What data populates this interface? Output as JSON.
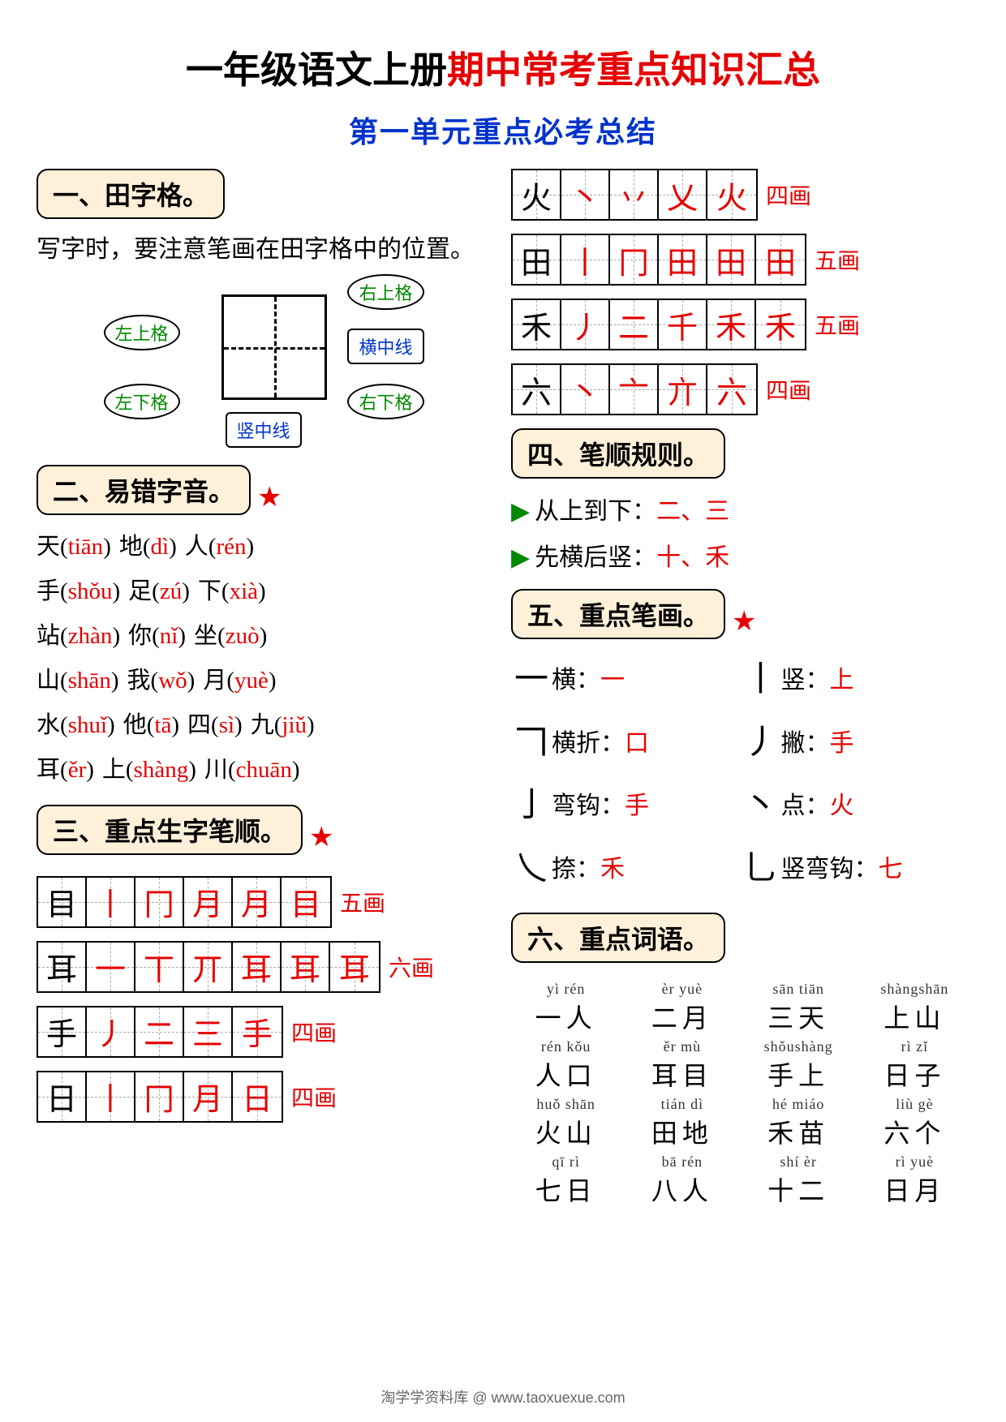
{
  "title": {
    "part1": "一年级语文上册",
    "part2": "期中常考重点知识汇总"
  },
  "subtitle": "第一单元重点必考总结",
  "sections": {
    "s1": {
      "header": "一、田字格。",
      "text": "写字时，要注意笔画在田字格中的位置。",
      "labels": {
        "tl": "左上格",
        "tr": "右上格",
        "bl": "左下格",
        "br": "右下格",
        "hline": "横中线",
        "vline": "竖中线"
      }
    },
    "s2": {
      "header": "二、易错字音。",
      "items": [
        {
          "c": "天",
          "p": "tiān"
        },
        {
          "c": "地",
          "p": "dì"
        },
        {
          "c": "人",
          "p": "rén"
        },
        {
          "c": "手",
          "p": "shǒu"
        },
        {
          "c": "足",
          "p": "zú"
        },
        {
          "c": "下",
          "p": "xià"
        },
        {
          "c": "站",
          "p": "zhàn"
        },
        {
          "c": "你",
          "p": "nǐ"
        },
        {
          "c": "坐",
          "p": "zuò"
        },
        {
          "c": "山",
          "p": "shān"
        },
        {
          "c": "我",
          "p": "wǒ"
        },
        {
          "c": "月",
          "p": "yuè"
        },
        {
          "c": "水",
          "p": "shuǐ"
        },
        {
          "c": "他",
          "p": "tā"
        },
        {
          "c": "四",
          "p": "sì"
        },
        {
          "c": "九",
          "p": "jiǔ"
        },
        {
          "c": "耳",
          "p": "ěr"
        },
        {
          "c": "上",
          "p": "shàng"
        },
        {
          "c": "川",
          "p": "chuān"
        }
      ]
    },
    "s3": {
      "header": "三、重点生字笔顺。",
      "rows": [
        {
          "cells": [
            "目",
            "丨",
            "冂",
            "月",
            "月",
            "目"
          ],
          "count": "五画"
        },
        {
          "cells": [
            "耳",
            "一",
            "丅",
            "丌",
            "耳",
            "耳",
            "耳"
          ],
          "count": "六画"
        },
        {
          "cells": [
            "手",
            "丿",
            "二",
            "三",
            "手"
          ],
          "count": "四画"
        },
        {
          "cells": [
            "日",
            "丨",
            "冂",
            "月",
            "日"
          ],
          "count": "四画"
        }
      ]
    },
    "s3b": {
      "rows": [
        {
          "cells": [
            "火",
            "丶",
            "丷",
            "乂",
            "火"
          ],
          "count": "四画"
        },
        {
          "cells": [
            "田",
            "丨",
            "冂",
            "田",
            "田",
            "田"
          ],
          "count": "五画"
        },
        {
          "cells": [
            "禾",
            "丿",
            "二",
            "千",
            "禾",
            "禾"
          ],
          "count": "五画"
        },
        {
          "cells": [
            "六",
            "丶",
            "亠",
            "亣",
            "六"
          ],
          "count": "四画"
        }
      ]
    },
    "s4": {
      "header": "四、笔顺规则。",
      "rules": [
        {
          "label": "从上到下：",
          "ex": "二、三"
        },
        {
          "label": "先横后竖：",
          "ex": "十、禾"
        }
      ]
    },
    "s5": {
      "header": "五、重点笔画。",
      "strokes": [
        {
          "g": "一",
          "n": "横：",
          "e": "一",
          "g2": "丨",
          "n2": "竖：",
          "e2": "上"
        },
        {
          "g": "𠃍",
          "n": "横折：",
          "e": "口",
          "g2": "丿",
          "n2": "撇：",
          "e2": "手"
        },
        {
          "g": "亅",
          "n": "弯钩：",
          "e": "手",
          "g2": "丶",
          "n2": "点：",
          "e2": "火"
        },
        {
          "g": "乀",
          "n": "捺：",
          "e": "禾",
          "g2": "乚",
          "n2": "竖弯钩：",
          "e2": "七"
        }
      ]
    },
    "s6": {
      "header": "六、重点词语。",
      "words": [
        {
          "p": "yì rén",
          "c": "一人"
        },
        {
          "p": "èr yuè",
          "c": "二月"
        },
        {
          "p": "sān tiān",
          "c": "三天"
        },
        {
          "p": "shàngshān",
          "c": "上山"
        },
        {
          "p": "rén kǒu",
          "c": "人口"
        },
        {
          "p": "ěr mù",
          "c": "耳目"
        },
        {
          "p": "shǒushàng",
          "c": "手上"
        },
        {
          "p": "rì zǐ",
          "c": "日子"
        },
        {
          "p": "huǒ shān",
          "c": "火山"
        },
        {
          "p": "tián dì",
          "c": "田地"
        },
        {
          "p": "hé miáo",
          "c": "禾苗"
        },
        {
          "p": "liù gè",
          "c": "六个"
        },
        {
          "p": "qī rì",
          "c": "七日"
        },
        {
          "p": "bā rén",
          "c": "八人"
        },
        {
          "p": "shí èr",
          "c": "十二"
        },
        {
          "p": "rì yuè",
          "c": "日月"
        }
      ]
    }
  },
  "footer": "淘学学资料库 @ www.taoxuexue.com"
}
